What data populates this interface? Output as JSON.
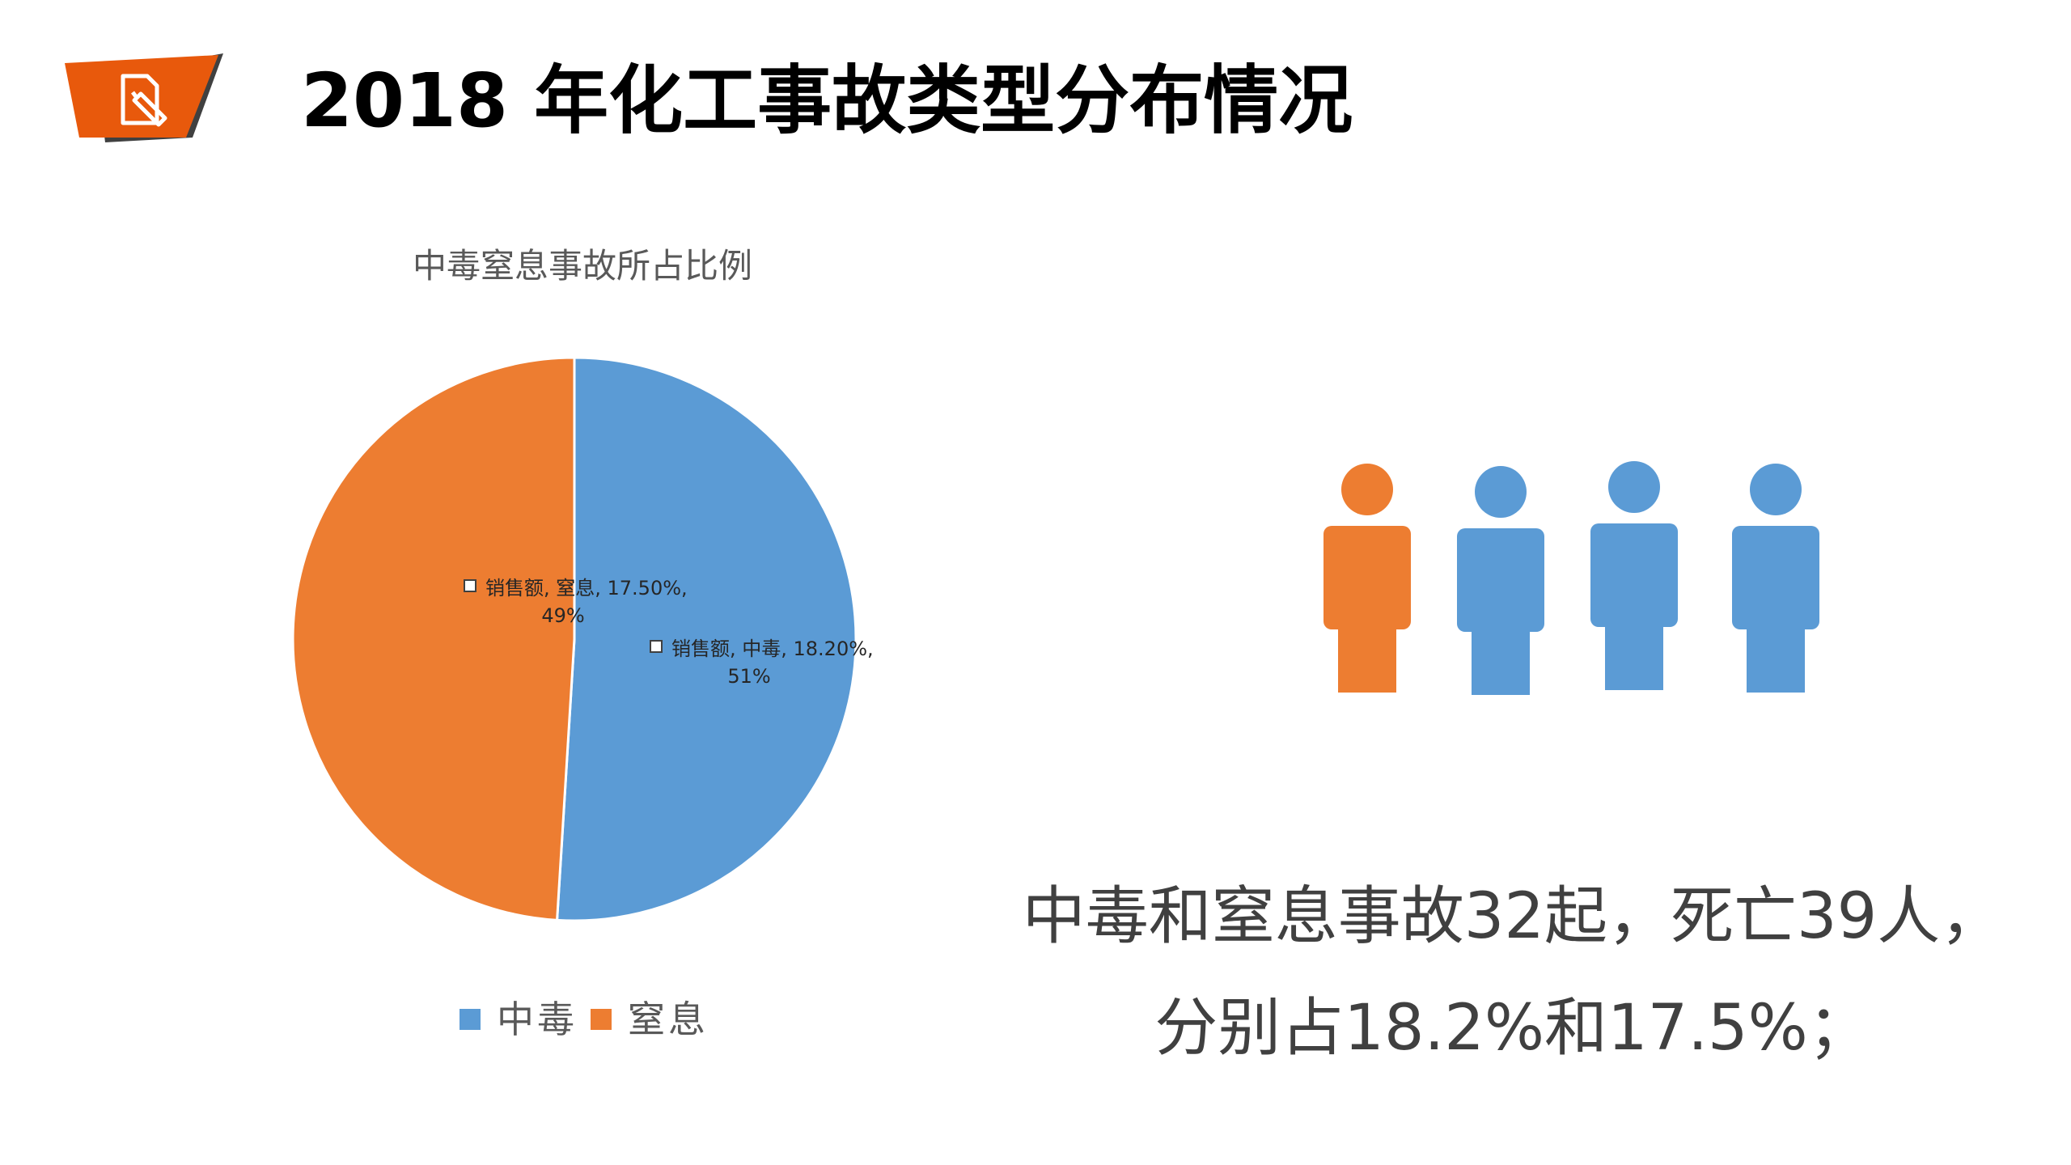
{
  "title": "2018 年化工事故类型分布情况",
  "colors": {
    "poisoning": "#5B9BD5",
    "suffocation": "#ED7D31",
    "logo": "#E8590C",
    "logo_shadow": "#404040"
  },
  "icons": [
    "document-edit-icon"
  ],
  "chart_data": {
    "type": "pie",
    "title": "中毒窒息事故所占比例",
    "slices": [
      {
        "category": "中毒",
        "series": "销售额",
        "value": 18.2,
        "value_label": "18.20%",
        "percent_label": "51%",
        "color": "#5B9BD5"
      },
      {
        "category": "窒息",
        "series": "销售额",
        "value": 17.5,
        "value_label": "17.50%",
        "percent_label": "49%",
        "color": "#ED7D31"
      }
    ],
    "legend": {
      "position": "bottom",
      "items": [
        "中毒",
        "窒息"
      ]
    }
  },
  "people": [
    {
      "color": "#ED7D31"
    },
    {
      "color": "#5B9BD5"
    },
    {
      "color": "#5B9BD5"
    },
    {
      "color": "#5B9BD5"
    }
  ],
  "summary": {
    "line1": "中毒和窒息事故32起，死亡39人，",
    "line2": "分别占18.2%和17.5%；"
  }
}
